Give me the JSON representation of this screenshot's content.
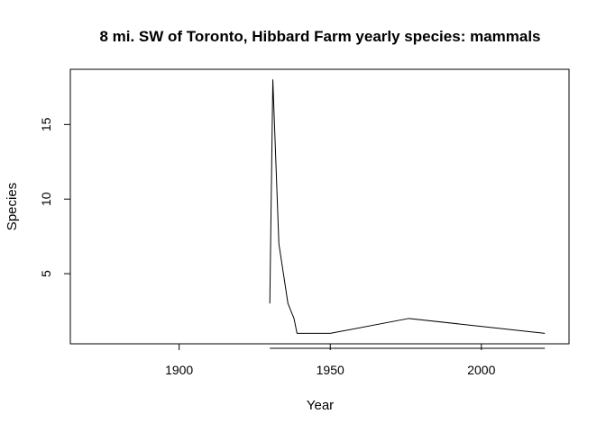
{
  "chart_data": {
    "type": "line",
    "title": "8 mi. SW of Toronto, Hibbard Farm yearly species: mammals",
    "xlabel": "Year",
    "ylabel": "Species",
    "xlim": [
      1864,
      2029
    ],
    "ylim": [
      0.3,
      18.7
    ],
    "x_ticks": [
      1900,
      1950,
      2000
    ],
    "y_ticks": [
      5,
      10,
      15
    ],
    "grid": false,
    "series": [
      {
        "x": [
          1930,
          1931,
          1933,
          1936,
          1938,
          1939,
          1950,
          1976,
          2021
        ],
        "y": [
          3,
          18,
          7,
          3,
          2,
          1,
          1,
          2,
          1
        ]
      }
    ],
    "baseline": {
      "x": [
        1930,
        2021
      ],
      "y": 0
    }
  }
}
